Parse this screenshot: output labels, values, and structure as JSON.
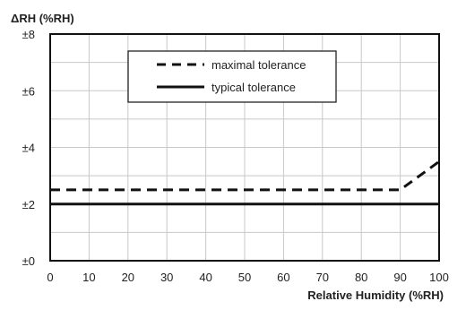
{
  "chart_data": {
    "type": "line",
    "ylabel": "ΔRH (%RH)",
    "xlabel": "Relative Humidity (%RH)",
    "xlim": [
      0,
      100
    ],
    "ylim": [
      0,
      8
    ],
    "x_ticks": [
      0,
      10,
      20,
      30,
      40,
      50,
      60,
      70,
      80,
      90,
      100
    ],
    "x_tick_labels": [
      "0",
      "10",
      "20",
      "30",
      "40",
      "50",
      "60",
      "70",
      "80",
      "90",
      "100"
    ],
    "y_ticks": [
      0,
      2,
      4,
      6,
      8
    ],
    "y_tick_labels": [
      "±0",
      "±2",
      "±4",
      "±6",
      "±8"
    ],
    "grid": true,
    "legend_position": "top-center",
    "series": [
      {
        "name": "maximal tolerance",
        "style": "dashed",
        "color": "#111111",
        "points": [
          [
            0,
            2.5
          ],
          [
            90,
            2.5
          ],
          [
            100,
            3.5
          ]
        ]
      },
      {
        "name": "typical tolerance",
        "style": "solid",
        "color": "#111111",
        "points": [
          [
            0,
            2
          ],
          [
            100,
            2
          ]
        ]
      }
    ]
  }
}
